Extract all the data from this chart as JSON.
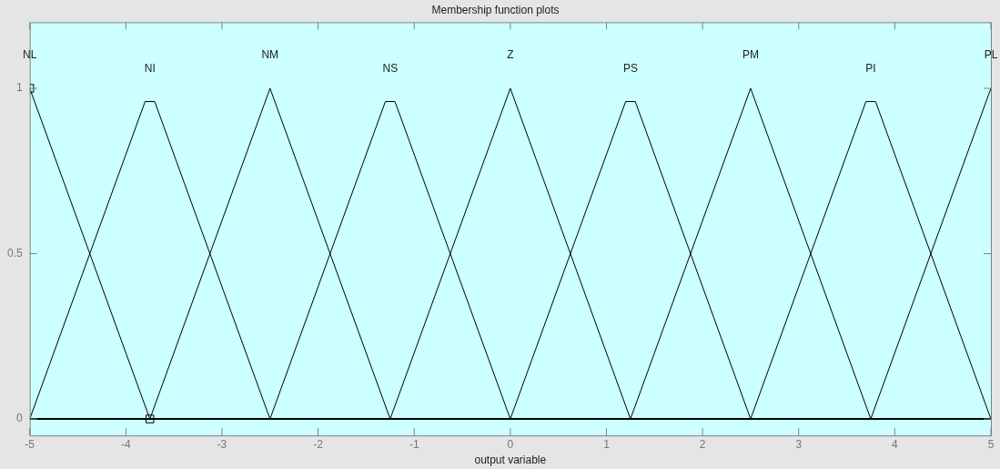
{
  "chart_data": {
    "type": "line",
    "title": "Membership function plots",
    "xlabel": "output variable",
    "xlim": [
      -5,
      5
    ],
    "ylim": [
      -0.05,
      1.2
    ],
    "xticks": [
      -5,
      -4,
      -3,
      -2,
      -1,
      0,
      1,
      2,
      3,
      4,
      5
    ],
    "yticks": [
      0,
      0.5,
      1
    ],
    "grid": false,
    "legend": false,
    "marker": "none",
    "line_style": "solid",
    "series": [
      {
        "name": "NL",
        "color": "#000000",
        "x": [
          -5,
          -3.75,
          5
        ],
        "values": [
          1,
          0,
          0
        ]
      },
      {
        "name": "NI",
        "color": "#000000",
        "x": [
          -5,
          -3.8,
          -3.7,
          -2.5,
          5
        ],
        "values": [
          0,
          0.96,
          0.96,
          0,
          0
        ]
      },
      {
        "name": "NM",
        "color": "#000000",
        "x": [
          -5,
          -3.75,
          -2.5,
          -1.25,
          5
        ],
        "values": [
          0,
          0,
          1,
          0,
          0
        ]
      },
      {
        "name": "NS",
        "color": "#000000",
        "x": [
          -5,
          -2.5,
          -1.3,
          -1.2,
          0,
          5
        ],
        "values": [
          0,
          0,
          0.96,
          0.96,
          0,
          0
        ]
      },
      {
        "name": "Z",
        "color": "#000000",
        "x": [
          -5,
          -1.25,
          0,
          1.25,
          5
        ],
        "values": [
          0,
          0,
          1,
          0,
          0
        ]
      },
      {
        "name": "PS",
        "color": "#000000",
        "x": [
          -5,
          0,
          1.2,
          1.3,
          2.5,
          5
        ],
        "values": [
          0,
          0,
          0.96,
          0.96,
          0,
          0
        ]
      },
      {
        "name": "PM",
        "color": "#000000",
        "x": [
          -5,
          1.25,
          2.5,
          3.75,
          5
        ],
        "values": [
          0,
          0,
          1,
          0,
          0
        ]
      },
      {
        "name": "PI",
        "color": "#000000",
        "x": [
          -5,
          2.5,
          3.7,
          3.8,
          5
        ],
        "values": [
          0,
          0,
          0.96,
          0.96,
          0
        ]
      },
      {
        "name": "PL",
        "color": "#000000",
        "x": [
          -5,
          3.75,
          5
        ],
        "values": [
          0,
          0,
          1
        ]
      },
      {
        "type": "scatter",
        "marker": "square",
        "color": "#000000",
        "x": [
          -5,
          -3.75
        ],
        "values": [
          1,
          0
        ]
      }
    ]
  }
}
